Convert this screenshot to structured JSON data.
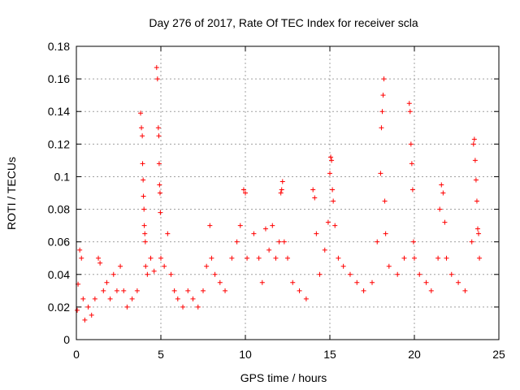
{
  "chart_data": {
    "type": "scatter",
    "title": "Day 276 of 2017, Rate Of TEC Index for receiver scla",
    "xlabel": "GPS time / hours",
    "ylabel": "ROTI / TECUs",
    "xlim": [
      0,
      25
    ],
    "ylim": [
      0,
      0.18
    ],
    "x_ticks": [
      "0",
      "5",
      "10",
      "15",
      "20",
      "25"
    ],
    "y_ticks": [
      "0",
      "0.02",
      "0.04",
      "0.06",
      "0.08",
      "0.1",
      "0.12",
      "0.14",
      "0.16",
      "0.18"
    ],
    "grid": true,
    "marker": "+",
    "series": [
      {
        "name": "ROTI",
        "color": "#ff0000",
        "points": [
          [
            0.05,
            0.018
          ],
          [
            0.1,
            0.034
          ],
          [
            0.2,
            0.055
          ],
          [
            0.3,
            0.05
          ],
          [
            0.4,
            0.025
          ],
          [
            0.5,
            0.012
          ],
          [
            0.7,
            0.02
          ],
          [
            0.9,
            0.015
          ],
          [
            1.1,
            0.025
          ],
          [
            1.3,
            0.05
          ],
          [
            1.4,
            0.047
          ],
          [
            1.6,
            0.03
          ],
          [
            1.8,
            0.035
          ],
          [
            2.0,
            0.025
          ],
          [
            2.2,
            0.04
          ],
          [
            2.4,
            0.03
          ],
          [
            2.6,
            0.045
          ],
          [
            2.8,
            0.03
          ],
          [
            3.0,
            0.02
          ],
          [
            3.3,
            0.025
          ],
          [
            3.6,
            0.03
          ],
          [
            3.8,
            0.139
          ],
          [
            3.85,
            0.13
          ],
          [
            3.9,
            0.125
          ],
          [
            3.92,
            0.108
          ],
          [
            3.95,
            0.098
          ],
          [
            3.97,
            0.088
          ],
          [
            4.0,
            0.08
          ],
          [
            4.02,
            0.07
          ],
          [
            4.05,
            0.065
          ],
          [
            4.08,
            0.06
          ],
          [
            4.1,
            0.045
          ],
          [
            4.2,
            0.04
          ],
          [
            4.4,
            0.05
          ],
          [
            4.6,
            0.042
          ],
          [
            4.75,
            0.167
          ],
          [
            4.8,
            0.16
          ],
          [
            4.85,
            0.13
          ],
          [
            4.88,
            0.125
          ],
          [
            4.9,
            0.108
          ],
          [
            4.92,
            0.095
          ],
          [
            4.95,
            0.09
          ],
          [
            4.97,
            0.078
          ],
          [
            5.0,
            0.05
          ],
          [
            5.2,
            0.045
          ],
          [
            5.4,
            0.065
          ],
          [
            5.6,
            0.04
          ],
          [
            5.8,
            0.03
          ],
          [
            6.0,
            0.025
          ],
          [
            6.3,
            0.02
          ],
          [
            6.6,
            0.03
          ],
          [
            6.9,
            0.025
          ],
          [
            7.2,
            0.02
          ],
          [
            7.5,
            0.03
          ],
          [
            7.7,
            0.045
          ],
          [
            7.9,
            0.07
          ],
          [
            8.0,
            0.05
          ],
          [
            8.2,
            0.04
          ],
          [
            8.5,
            0.035
          ],
          [
            8.8,
            0.03
          ],
          [
            9.2,
            0.05
          ],
          [
            9.5,
            0.06
          ],
          [
            9.7,
            0.07
          ],
          [
            9.9,
            0.092
          ],
          [
            10.0,
            0.09
          ],
          [
            10.1,
            0.05
          ],
          [
            10.5,
            0.065
          ],
          [
            10.8,
            0.05
          ],
          [
            11.0,
            0.035
          ],
          [
            11.2,
            0.068
          ],
          [
            11.4,
            0.055
          ],
          [
            11.6,
            0.07
          ],
          [
            11.8,
            0.05
          ],
          [
            12.0,
            0.06
          ],
          [
            12.1,
            0.09
          ],
          [
            12.15,
            0.092
          ],
          [
            12.2,
            0.097
          ],
          [
            12.3,
            0.06
          ],
          [
            12.5,
            0.05
          ],
          [
            12.8,
            0.035
          ],
          [
            13.2,
            0.03
          ],
          [
            13.6,
            0.025
          ],
          [
            14.0,
            0.092
          ],
          [
            14.1,
            0.087
          ],
          [
            14.2,
            0.065
          ],
          [
            14.4,
            0.04
          ],
          [
            14.7,
            0.055
          ],
          [
            14.9,
            0.072
          ],
          [
            15.0,
            0.102
          ],
          [
            15.05,
            0.112
          ],
          [
            15.1,
            0.11
          ],
          [
            15.15,
            0.092
          ],
          [
            15.2,
            0.085
          ],
          [
            15.3,
            0.07
          ],
          [
            15.5,
            0.05
          ],
          [
            15.8,
            0.045
          ],
          [
            16.2,
            0.04
          ],
          [
            16.6,
            0.035
          ],
          [
            17.0,
            0.03
          ],
          [
            17.5,
            0.035
          ],
          [
            17.8,
            0.06
          ],
          [
            18.0,
            0.102
          ],
          [
            18.05,
            0.13
          ],
          [
            18.1,
            0.14
          ],
          [
            18.15,
            0.15
          ],
          [
            18.2,
            0.16
          ],
          [
            18.25,
            0.085
          ],
          [
            18.3,
            0.065
          ],
          [
            18.5,
            0.045
          ],
          [
            19.0,
            0.04
          ],
          [
            19.4,
            0.05
          ],
          [
            19.7,
            0.145
          ],
          [
            19.75,
            0.14
          ],
          [
            19.8,
            0.12
          ],
          [
            19.85,
            0.108
          ],
          [
            19.9,
            0.092
          ],
          [
            19.95,
            0.06
          ],
          [
            20.0,
            0.05
          ],
          [
            20.3,
            0.04
          ],
          [
            20.7,
            0.035
          ],
          [
            21.0,
            0.03
          ],
          [
            21.4,
            0.05
          ],
          [
            21.5,
            0.08
          ],
          [
            21.6,
            0.095
          ],
          [
            21.7,
            0.09
          ],
          [
            21.8,
            0.072
          ],
          [
            21.9,
            0.05
          ],
          [
            22.2,
            0.04
          ],
          [
            22.6,
            0.035
          ],
          [
            23.0,
            0.03
          ],
          [
            23.4,
            0.06
          ],
          [
            23.5,
            0.12
          ],
          [
            23.55,
            0.123
          ],
          [
            23.6,
            0.11
          ],
          [
            23.65,
            0.098
          ],
          [
            23.7,
            0.085
          ],
          [
            23.75,
            0.068
          ],
          [
            23.8,
            0.065
          ],
          [
            23.85,
            0.05
          ]
        ]
      }
    ]
  }
}
